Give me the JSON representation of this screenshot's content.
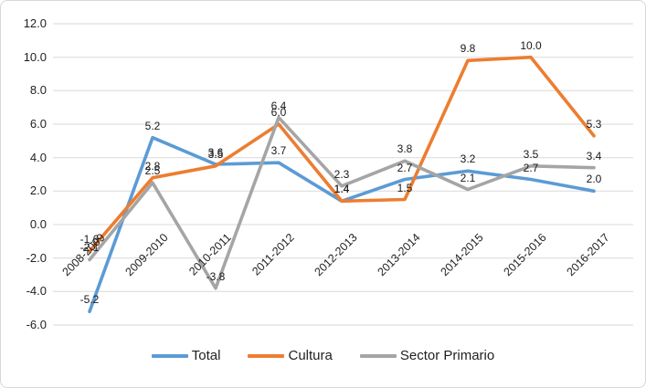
{
  "chart_data": {
    "type": "line",
    "title": "",
    "categories": [
      "2008-2009",
      "2009-2010",
      "2010-2011",
      "2011-2012",
      "2012-2013",
      "2013-2014",
      "2014-2015",
      "2015-2016",
      "2016-2017"
    ],
    "series": [
      {
        "name": "Total",
        "color": "#5B9BD5",
        "values": [
          -5.2,
          5.2,
          3.6,
          3.7,
          1.4,
          2.7,
          3.2,
          2.7,
          2.0
        ]
      },
      {
        "name": "Cultura",
        "color": "#ED7D31",
        "values": [
          -1.6,
          2.8,
          3.5,
          6.0,
          1.4,
          1.5,
          9.8,
          10.0,
          5.3
        ]
      },
      {
        "name": "Sector Primario",
        "color": "#A5A5A5",
        "values": [
          -2.1,
          2.5,
          -3.8,
          6.4,
          2.3,
          3.8,
          2.1,
          3.5,
          3.4
        ]
      }
    ],
    "y_axis": {
      "min": -6.0,
      "max": 12.0,
      "step": 2.0,
      "tick_labels": [
        "12.0",
        "10.0",
        "8.0",
        "6.0",
        "4.0",
        "2.0",
        "0.0",
        "-2.0",
        "-4.0",
        "-6.0"
      ]
    },
    "grid": true,
    "data_labels": true,
    "decimals": 1,
    "legend_position": "bottom"
  },
  "colors": {
    "background": "#ffffff",
    "border": "#d7d7d7",
    "gridline": "#d9d9d9",
    "text": "#1f1f1f"
  }
}
